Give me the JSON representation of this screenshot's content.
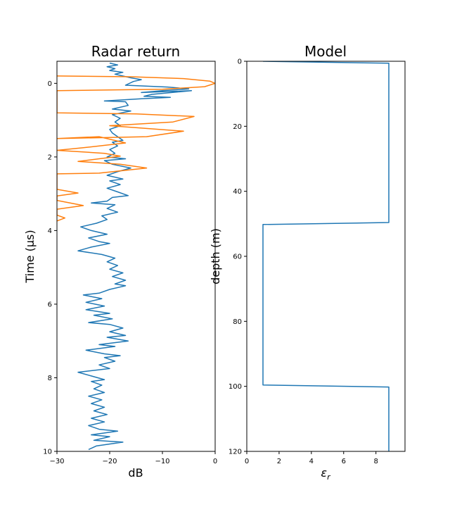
{
  "chart_data": [
    {
      "type": "line",
      "title": "Radar return",
      "xlabel": "dB",
      "ylabel": "Time (μs)",
      "xlim": [
        -30,
        0
      ],
      "ylim": [
        10,
        -0.6
      ],
      "y_inverted": true,
      "xticks": [
        -30,
        -20,
        -10,
        0
      ],
      "xtick_labels": [
        "−30",
        "−20",
        "−10",
        "0"
      ],
      "yticks": [
        0,
        2,
        4,
        6,
        8,
        10
      ],
      "grid": false,
      "series": [
        {
          "color": "#1f77b4",
          "points": [
            [
              -20,
              -0.55
            ],
            [
              -18.5,
              -0.5
            ],
            [
              -20.5,
              -0.45
            ],
            [
              -19,
              -0.4
            ],
            [
              -20,
              -0.35
            ],
            [
              -17.5,
              -0.3
            ],
            [
              -19,
              -0.25
            ],
            [
              -16,
              -0.15
            ],
            [
              -14,
              -0.1
            ],
            [
              -15.5,
              -0.05
            ],
            [
              -17,
              0.05
            ],
            [
              -9,
              0.1
            ],
            [
              -5,
              0.15
            ],
            [
              -10,
              0.2
            ],
            [
              -14,
              0.25
            ],
            [
              -4.5,
              0.2
            ],
            [
              -12,
              0.3
            ],
            [
              -13.5,
              0.35
            ],
            [
              -8.5,
              0.38
            ],
            [
              -14,
              0.42
            ],
            [
              -21,
              0.48
            ],
            [
              -17,
              0.5
            ],
            [
              -16.5,
              0.6
            ],
            [
              -19.5,
              0.7
            ],
            [
              -16,
              0.75
            ],
            [
              -19.5,
              0.85
            ],
            [
              -18,
              0.95
            ],
            [
              -19,
              1.05
            ],
            [
              -18,
              1.15
            ],
            [
              -20,
              1.25
            ],
            [
              -19.5,
              1.35
            ],
            [
              -18.5,
              1.45
            ],
            [
              -17.5,
              1.55
            ],
            [
              -19.5,
              1.6
            ],
            [
              -18.5,
              1.7
            ],
            [
              -20,
              1.8
            ],
            [
              -19,
              1.9
            ],
            [
              -20.5,
              2.0
            ],
            [
              -17,
              2.05
            ],
            [
              -21,
              2.1
            ],
            [
              -19.5,
              2.2
            ],
            [
              -16,
              2.3
            ],
            [
              -18.5,
              2.4
            ],
            [
              -20.5,
              2.5
            ],
            [
              -17.5,
              2.6
            ],
            [
              -20,
              2.65
            ],
            [
              -18,
              2.75
            ],
            [
              -20.5,
              2.85
            ],
            [
              -18.5,
              2.95
            ],
            [
              -16.5,
              3.05
            ],
            [
              -19.5,
              3.1
            ],
            [
              -20.5,
              3.2
            ],
            [
              -23.5,
              3.25
            ],
            [
              -19,
              3.3
            ],
            [
              -20.5,
              3.4
            ],
            [
              -18.5,
              3.5
            ],
            [
              -21.5,
              3.6
            ],
            [
              -20.5,
              3.7
            ],
            [
              -22.5,
              3.8
            ],
            [
              -25.5,
              3.9
            ],
            [
              -23.5,
              4.0
            ],
            [
              -20.5,
              4.1
            ],
            [
              -24,
              4.2
            ],
            [
              -22,
              4.3
            ],
            [
              -20,
              4.35
            ],
            [
              -23.5,
              4.45
            ],
            [
              -26,
              4.55
            ],
            [
              -21.5,
              4.65
            ],
            [
              -19,
              4.75
            ],
            [
              -20.5,
              4.85
            ],
            [
              -18.5,
              4.95
            ],
            [
              -20,
              5.05
            ],
            [
              -17.5,
              5.15
            ],
            [
              -19.5,
              5.25
            ],
            [
              -17,
              5.35
            ],
            [
              -19,
              5.45
            ],
            [
              -17,
              5.5
            ],
            [
              -20,
              5.6
            ],
            [
              -22,
              5.7
            ],
            [
              -25,
              5.75
            ],
            [
              -21.5,
              5.85
            ],
            [
              -24.5,
              5.95
            ],
            [
              -21,
              6.05
            ],
            [
              -24.5,
              6.15
            ],
            [
              -20,
              6.25
            ],
            [
              -23,
              6.3
            ],
            [
              -19.5,
              6.4
            ],
            [
              -24,
              6.5
            ],
            [
              -20,
              6.55
            ],
            [
              -17.5,
              6.65
            ],
            [
              -20,
              6.75
            ],
            [
              -17,
              6.85
            ],
            [
              -20.5,
              6.9
            ],
            [
              -16.5,
              7.0
            ],
            [
              -22,
              7.1
            ],
            [
              -19,
              7.15
            ],
            [
              -24.5,
              7.25
            ],
            [
              -21,
              7.35
            ],
            [
              -18,
              7.4
            ],
            [
              -21,
              7.45
            ],
            [
              -19,
              7.55
            ],
            [
              -22,
              7.65
            ],
            [
              -20,
              7.75
            ],
            [
              -26,
              7.85
            ],
            [
              -23.5,
              7.95
            ],
            [
              -21,
              8.05
            ],
            [
              -23.5,
              8.1
            ],
            [
              -21.5,
              8.2
            ],
            [
              -23,
              8.3
            ],
            [
              -21,
              8.4
            ],
            [
              -24,
              8.5
            ],
            [
              -21.5,
              8.6
            ],
            [
              -23.5,
              8.7
            ],
            [
              -21,
              8.8
            ],
            [
              -23,
              8.9
            ],
            [
              -20.5,
              9.0
            ],
            [
              -23.5,
              9.1
            ],
            [
              -21,
              9.2
            ],
            [
              -24,
              9.3
            ],
            [
              -22,
              9.4
            ],
            [
              -18.5,
              9.45
            ],
            [
              -23.5,
              9.55
            ],
            [
              -20,
              9.6
            ],
            [
              -23,
              9.7
            ],
            [
              -17.5,
              9.75
            ],
            [
              -22.5,
              9.85
            ],
            [
              -24,
              9.95
            ]
          ]
        },
        {
          "color": "#ff7f0e",
          "points": [
            [
              -30,
              -0.2
            ],
            [
              -16,
              -0.18
            ],
            [
              -6,
              -0.13
            ],
            [
              -1,
              -0.06
            ],
            [
              0,
              0.0
            ],
            [
              -2,
              0.09
            ],
            [
              -10,
              0.16
            ],
            [
              -30,
              0.2
            ],
            [
              -30,
              0.8
            ],
            [
              -15,
              0.83
            ],
            [
              -4,
              0.9
            ],
            [
              -8,
              1.05
            ],
            [
              -20,
              1.15
            ],
            [
              -6,
              1.3
            ],
            [
              -13,
              1.45
            ],
            [
              -30,
              1.5
            ],
            [
              -22,
              1.45
            ],
            [
              -17,
              1.62
            ],
            [
              -25,
              1.75
            ],
            [
              -30,
              1.82
            ],
            [
              -21,
              1.9
            ],
            [
              -18,
              1.98
            ],
            [
              -26,
              2.12
            ],
            [
              -18,
              2.2
            ],
            [
              -13,
              2.3
            ],
            [
              -22,
              2.44
            ],
            [
              -30,
              2.46
            ],
            [
              -30,
              2.88
            ],
            [
              -26,
              2.98
            ],
            [
              -30,
              3.06
            ],
            [
              -30,
              3.18
            ],
            [
              -25,
              3.32
            ],
            [
              -30,
              3.42
            ],
            [
              -30,
              3.58
            ],
            [
              -28.5,
              3.66
            ],
            [
              -30,
              3.74
            ]
          ]
        }
      ]
    },
    {
      "type": "line",
      "title": "Model",
      "xlabel": "εr",
      "ylabel": "depth (m)",
      "xlim": [
        0,
        9.8
      ],
      "ylim": [
        120,
        0
      ],
      "y_inverted": true,
      "xticks": [
        0,
        2,
        4,
        6,
        8
      ],
      "yticks": [
        0,
        20,
        40,
        60,
        80,
        100,
        120
      ],
      "grid": false,
      "series": [
        {
          "color": "#1f77b4",
          "points": [
            [
              1,
              0
            ],
            [
              8.8,
              0.6
            ],
            [
              8.8,
              49.6
            ],
            [
              1,
              50.2
            ],
            [
              1,
              99.6
            ],
            [
              8.8,
              100.2
            ],
            [
              8.8,
              120
            ]
          ]
        }
      ]
    }
  ]
}
